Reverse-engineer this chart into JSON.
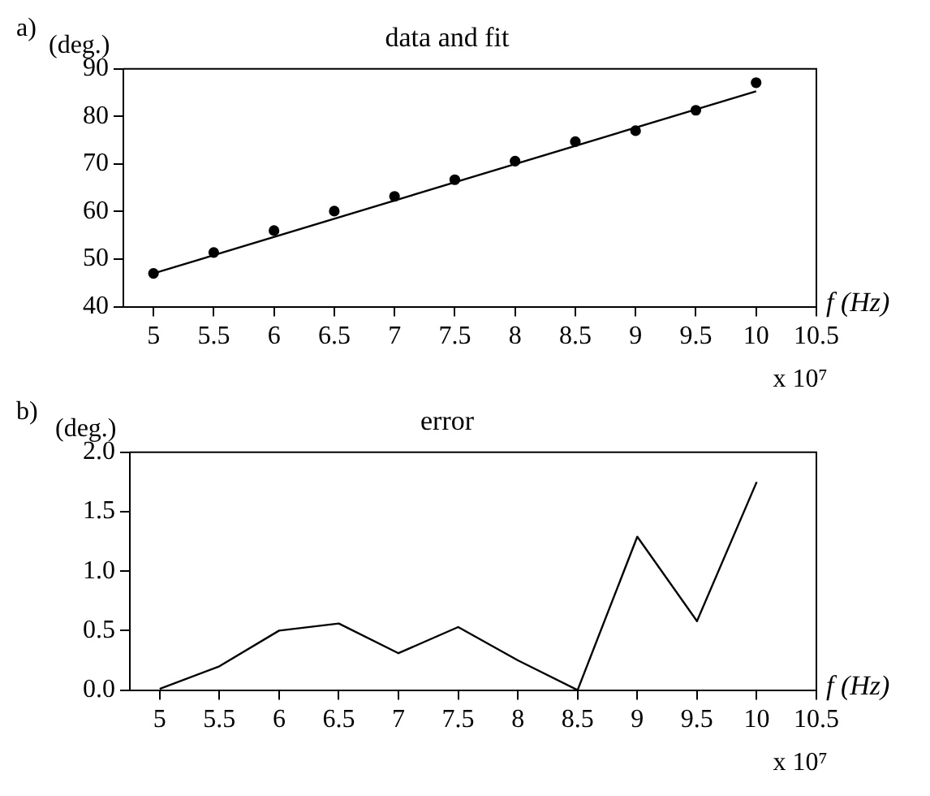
{
  "chart_data": [
    {
      "type": "line",
      "title": "data and fit",
      "ylabel": "(deg.)",
      "xlabel": "f (Hz)",
      "annotations": [
        "a)",
        "x 10⁷"
      ],
      "x": [
        5,
        5.5,
        6,
        6.5,
        7,
        7.5,
        8,
        8.5,
        9,
        9.5,
        10
      ],
      "series": [
        {
          "type": "scatter",
          "color": "#000000",
          "marker": "circle",
          "values": [
            47.0,
            51.4,
            56.0,
            60.1,
            63.2,
            66.7,
            70.6,
            74.7,
            77.0,
            81.3,
            87.1
          ]
        },
        {
          "type": "line",
          "color": "#000000",
          "x": [
            5,
            10
          ],
          "values": [
            47.0,
            85.3
          ]
        }
      ],
      "xlim": [
        4.75,
        10.5
      ],
      "xticks": [
        5,
        5.5,
        6,
        6.5,
        7,
        7.5,
        8,
        8.5,
        9,
        9.5,
        10,
        10.5
      ],
      "ylim": [
        40,
        90
      ],
      "yticks": [
        40,
        50,
        60,
        70,
        80,
        90
      ],
      "grid": false,
      "legend": false
    },
    {
      "type": "line",
      "title": "error",
      "ylabel": "(deg.)",
      "xlabel": "f (Hz)",
      "annotations": [
        "b)",
        "x 10⁷"
      ],
      "x": [
        5,
        5.5,
        6,
        6.5,
        7,
        7.5,
        8,
        8.5,
        9,
        9.5,
        10
      ],
      "series": [
        {
          "type": "line",
          "color": "#000000",
          "values": [
            0.01,
            0.2,
            0.5,
            0.56,
            0.31,
            0.53,
            0.25,
            0,
            1.29,
            0.58,
            1.75
          ]
        }
      ],
      "xlim": [
        4.75,
        10.5
      ],
      "xticks": [
        5,
        5.5,
        6,
        6.5,
        7,
        7.5,
        8,
        8.5,
        9,
        9.5,
        10,
        10.5
      ],
      "ylim": [
        0,
        2
      ],
      "yticks": [
        {
          "value": 0,
          "label": "0.0"
        },
        {
          "value": 0.5,
          "label": "0.5"
        },
        {
          "value": 1,
          "label": "1.0"
        },
        {
          "value": 1.5,
          "label": "1.5"
        },
        {
          "value": 2,
          "label": "2.0"
        }
      ],
      "grid": false,
      "legend": false
    }
  ]
}
